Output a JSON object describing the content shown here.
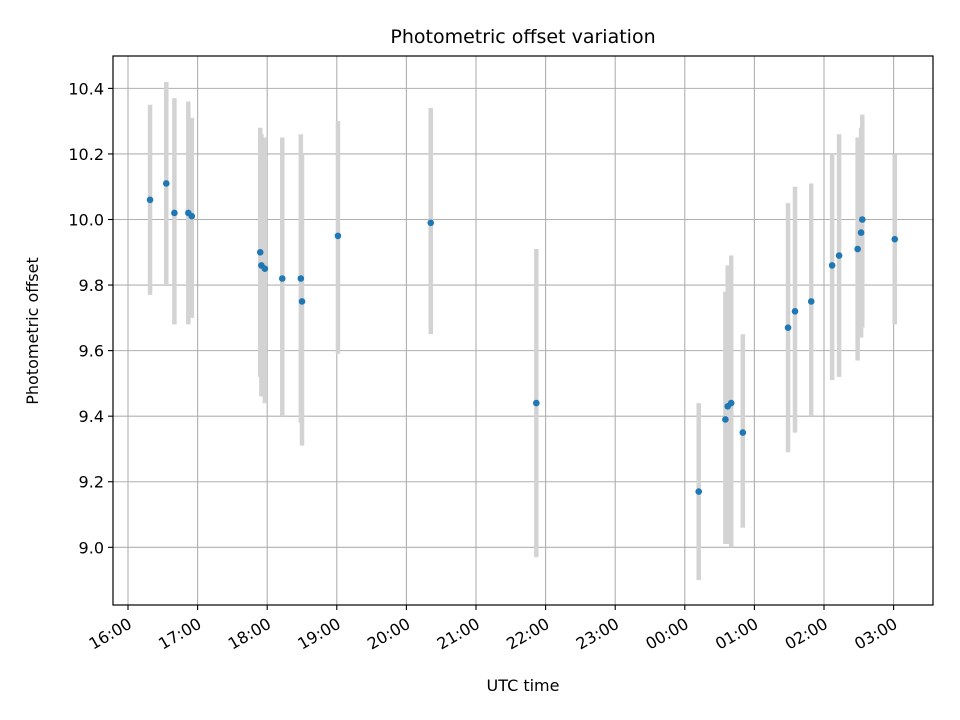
{
  "chart_data": {
    "type": "scatter",
    "title": "Photometric offset variation",
    "xlabel": "UTC time",
    "ylabel": "Photometric offset",
    "x_unit": "UTC time (HH:MM)",
    "xlim": [
      "16:00",
      "03:00"
    ],
    "ylim": [
      8.83,
      10.5
    ],
    "grid": true,
    "x_ticks": [
      "16:00",
      "17:00",
      "18:00",
      "19:00",
      "20:00",
      "21:00",
      "22:00",
      "23:00",
      "00:00",
      "01:00",
      "02:00",
      "03:00"
    ],
    "y_ticks": [
      "9.0",
      "9.2",
      "9.4",
      "9.6",
      "9.8",
      "10.0",
      "10.2",
      "10.4"
    ],
    "colors": {
      "marker": "#1f77b4",
      "errorbar": "#d3d3d3",
      "grid": "#b0b0b0"
    },
    "points": [
      {
        "x": "16:19",
        "y": 10.06,
        "ylow": 9.77,
        "yhigh": 10.35
      },
      {
        "x": "16:33",
        "y": 10.11,
        "ylow": 9.8,
        "yhigh": 10.42
      },
      {
        "x": "16:40",
        "y": 10.02,
        "ylow": 9.68,
        "yhigh": 10.37
      },
      {
        "x": "16:52",
        "y": 10.02,
        "ylow": 9.68,
        "yhigh": 10.36
      },
      {
        "x": "16:55",
        "y": 10.01,
        "ylow": 9.7,
        "yhigh": 10.31
      },
      {
        "x": "17:54",
        "y": 9.9,
        "ylow": 9.52,
        "yhigh": 10.28
      },
      {
        "x": "17:55",
        "y": 9.86,
        "ylow": 9.46,
        "yhigh": 10.26
      },
      {
        "x": "17:58",
        "y": 9.85,
        "ylow": 9.44,
        "yhigh": 10.25
      },
      {
        "x": "18:13",
        "y": 9.82,
        "ylow": 9.4,
        "yhigh": 10.25
      },
      {
        "x": "18:29",
        "y": 9.82,
        "ylow": 9.38,
        "yhigh": 10.26
      },
      {
        "x": "18:30",
        "y": 9.75,
        "ylow": 9.31,
        "yhigh": 10.2
      },
      {
        "x": "19:01",
        "y": 9.95,
        "ylow": 9.59,
        "yhigh": 10.3
      },
      {
        "x": "20:21",
        "y": 9.99,
        "ylow": 9.65,
        "yhigh": 10.34
      },
      {
        "x": "21:52",
        "y": 9.44,
        "ylow": 8.97,
        "yhigh": 9.91
      },
      {
        "x": "00:12",
        "y": 9.17,
        "ylow": 8.9,
        "yhigh": 9.44
      },
      {
        "x": "00:35",
        "y": 9.39,
        "ylow": 9.01,
        "yhigh": 9.78
      },
      {
        "x": "00:37",
        "y": 9.43,
        "ylow": 9.01,
        "yhigh": 9.86
      },
      {
        "x": "00:40",
        "y": 9.44,
        "ylow": 9.0,
        "yhigh": 9.89
      },
      {
        "x": "00:50",
        "y": 9.35,
        "ylow": 9.06,
        "yhigh": 9.65
      },
      {
        "x": "01:29",
        "y": 9.67,
        "ylow": 9.29,
        "yhigh": 10.05
      },
      {
        "x": "01:35",
        "y": 9.72,
        "ylow": 9.35,
        "yhigh": 10.1
      },
      {
        "x": "01:49",
        "y": 9.75,
        "ylow": 9.4,
        "yhigh": 10.11
      },
      {
        "x": "02:07",
        "y": 9.86,
        "ylow": 9.51,
        "yhigh": 10.2
      },
      {
        "x": "02:13",
        "y": 9.89,
        "ylow": 9.52,
        "yhigh": 10.26
      },
      {
        "x": "02:29",
        "y": 9.91,
        "ylow": 9.57,
        "yhigh": 10.25
      },
      {
        "x": "02:32",
        "y": 9.96,
        "ylow": 9.64,
        "yhigh": 10.28
      },
      {
        "x": "02:33",
        "y": 10.0,
        "ylow": 9.67,
        "yhigh": 10.32
      },
      {
        "x": "03:01",
        "y": 9.94,
        "ylow": 9.68,
        "yhigh": 10.2
      }
    ]
  }
}
